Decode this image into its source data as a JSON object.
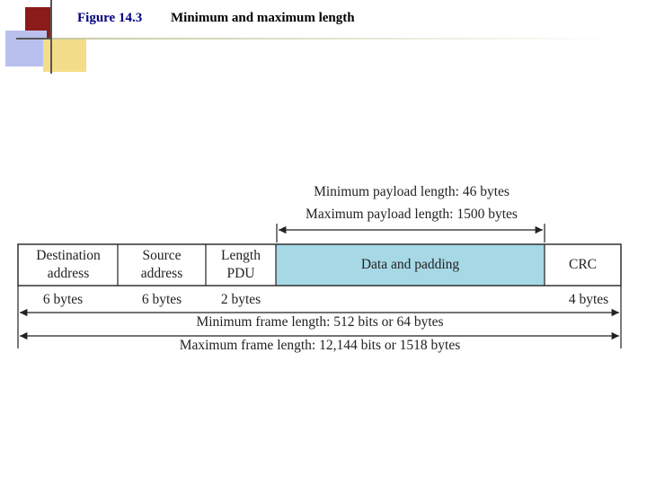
{
  "title": {
    "figure": "Figure 14.3",
    "text": "Minimum and maximum length"
  },
  "payload": {
    "min": "Minimum payload length: 46 bytes",
    "max": "Maximum payload length: 1500 bytes"
  },
  "fields": [
    {
      "line1": "Destination",
      "line2": "address",
      "size": "6 bytes"
    },
    {
      "line1": "Source",
      "line2": "address",
      "size": "6 bytes"
    },
    {
      "line1": "Length",
      "line2": "PDU",
      "size": "2 bytes"
    },
    {
      "line1": "Data and padding",
      "line2": "",
      "size": ""
    },
    {
      "line1": "CRC",
      "line2": "",
      "size": "4 bytes"
    }
  ],
  "frame": {
    "min": "Minimum frame length: 512 bits or 64 bytes",
    "max": "Maximum frame length: 12,144 bits or 1518 bytes"
  },
  "colors": {
    "data_fill": "#a7d8e6",
    "title_fig": "#000080",
    "deco_red": "#8b1a1a",
    "deco_blue": "#b9c0ee",
    "deco_yellow": "#f3dd8a"
  }
}
